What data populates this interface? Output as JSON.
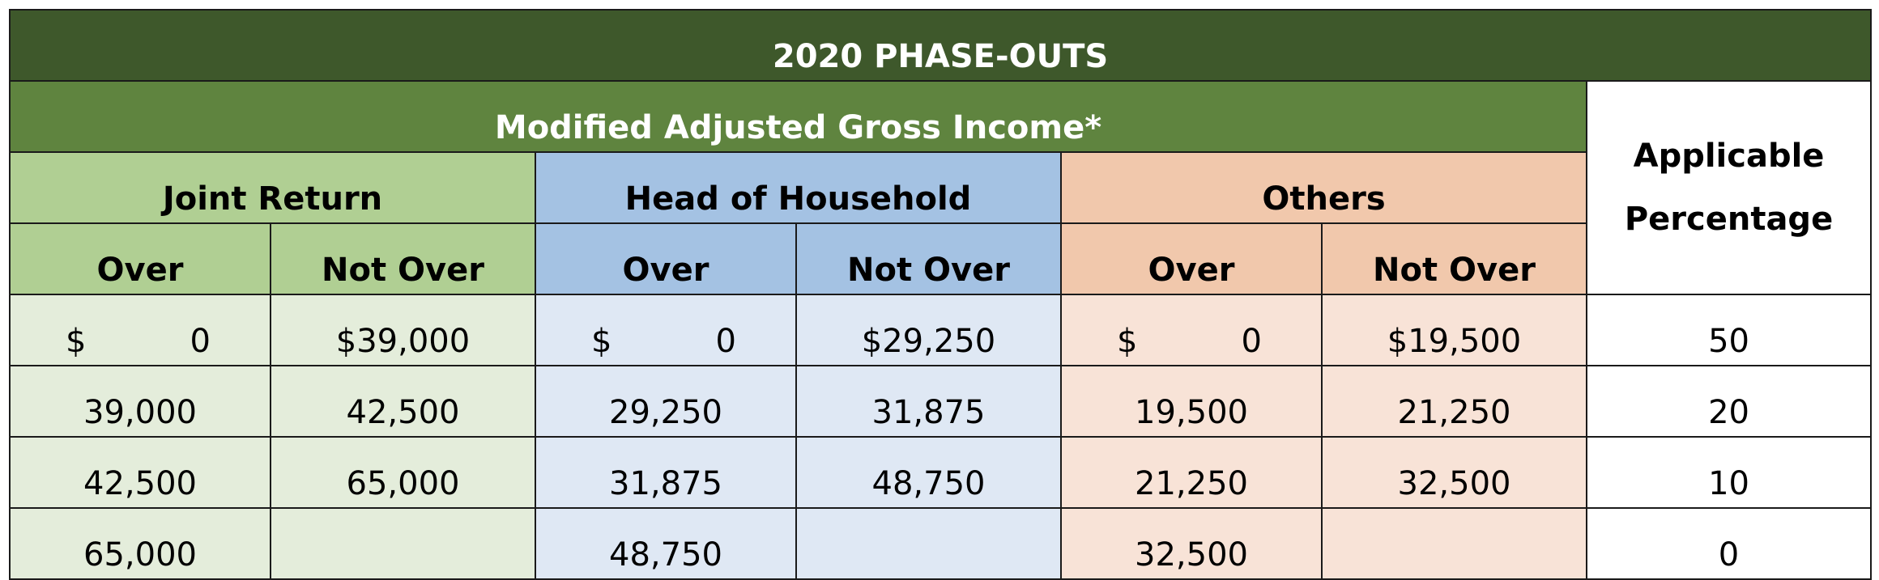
{
  "title": "2020 PHASE-OUTS",
  "magi_header": "Modified Adjusted Gross Income*",
  "groups": {
    "joint": "Joint Return",
    "hoh": "Head of Household",
    "others": "Others"
  },
  "applicable_header": {
    "line1": "Applicable",
    "line2": "Percentage"
  },
  "subheaders": {
    "over": "Over",
    "not_over": "Not Over"
  },
  "first_row": {
    "joint_over_sign": "$",
    "joint_over_amount": "0",
    "joint_not_over": "$39,000",
    "hoh_over_sign": "$",
    "hoh_over_amount": "0",
    "hoh_not_over": "$29,250",
    "others_over_sign": "$",
    "others_over_amount": "0",
    "others_not_over": "$19,500",
    "percentage": "50"
  },
  "rows": [
    {
      "joint_over": "39,000",
      "joint_not_over": "42,500",
      "hoh_over": "29,250",
      "hoh_not_over": "31,875",
      "others_over": "19,500",
      "others_not_over": "21,250",
      "percentage": "20"
    },
    {
      "joint_over": "42,500",
      "joint_not_over": "65,000",
      "hoh_over": "31,875",
      "hoh_not_over": "48,750",
      "others_over": "21,250",
      "others_not_over": "32,500",
      "percentage": "10"
    },
    {
      "joint_over": "65,000",
      "joint_not_over": "",
      "hoh_over": "48,750",
      "hoh_not_over": "",
      "others_over": "32,500",
      "others_not_over": "",
      "percentage": "0"
    }
  ],
  "colors": {
    "title_bg": "#3e582b",
    "magi_bg": "#5f843f",
    "joint_header": "#b0cf93",
    "joint_data": "#e4eddb",
    "hoh_header": "#a4c2e3",
    "hoh_data": "#dfe8f4",
    "others_header": "#f1c8ac",
    "others_data": "#f8e3d7"
  }
}
